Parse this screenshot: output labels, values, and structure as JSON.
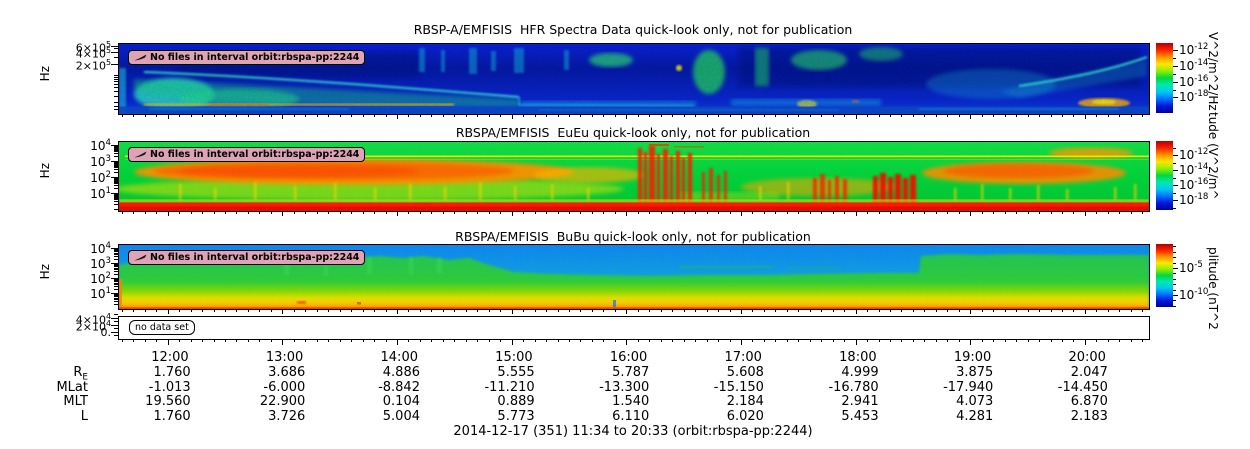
{
  "window": {
    "background": "#ffffff"
  },
  "icons": {
    "badge_marker": "pen-slash-icon"
  },
  "colors": {
    "jet": [
      "#b00000",
      "#ff2000",
      "#ff9000",
      "#ffe600",
      "#90f000",
      "#00d840",
      "#00e8b0",
      "#00c8f0",
      "#0070ff",
      "#0018d8",
      "#0000a0"
    ],
    "badge_bg": "#dfa3b6",
    "panel1_base": "#0a16c0",
    "panel2_base": "#00d23c",
    "panel3_top": "#0a86f0"
  },
  "chart_data": [
    {
      "type": "heatmap",
      "title": "RBSP-A/EMFISIS  HFR Spectra Data quick-look only, not for publication",
      "ylabel": "Hz",
      "yscale": "log",
      "yticks": [
        "6×10^5",
        "4×10^5",
        "2×10^5"
      ],
      "badge": "No files in interval orbit:rbspa-pp:2244",
      "colorbar": {
        "ticks": [
          "10^-12",
          "10^-14",
          "10^-16",
          "10^-18"
        ],
        "unit": "V^2/m^2/Hz",
        "range_exponents": [
          -12,
          -18
        ]
      }
    },
    {
      "type": "heatmap",
      "title": "RBSPA/EMFISIS  EuEu quick-look only, not for publication",
      "ylabel": "Hz",
      "yscale": "log",
      "yticks": [
        "10^4",
        "10^3",
        "10^2",
        "10^1"
      ],
      "badge": "No files in interval orbit:rbspa-pp:2244",
      "colorbar": {
        "ticks": [
          "10^-12",
          "10^-14",
          "10^-16",
          "10^-18"
        ],
        "unit": "tude (V^2/m^",
        "range_exponents": [
          -12,
          -18
        ]
      }
    },
    {
      "type": "heatmap",
      "title": "RBSPA/EMFISIS  BuBu quick-look only, not for publication",
      "ylabel": "Hz",
      "yscale": "log",
      "yticks": [
        "10^4",
        "10^3",
        "10^2",
        "10^1"
      ],
      "badge": "No files in interval orbit:rbspa-pp:2244",
      "colorbar": {
        "ticks": [
          "10^-5",
          "10^-10"
        ],
        "unit": "plitude (nT^2",
        "range_exponents": [
          -5,
          -10
        ]
      }
    },
    {
      "type": "empty",
      "yticks": [
        "4×10^4",
        "2×10^4",
        "0."
      ],
      "badge": "no data set"
    },
    {
      "type": "table",
      "x": [
        "12:00",
        "13:00",
        "14:00",
        "15:00",
        "16:00",
        "17:00",
        "18:00",
        "19:00",
        "20:00"
      ],
      "rows": [
        {
          "label": "R",
          "sub": "E",
          "values": [
            "1.760",
            "3.686",
            "4.886",
            "5.555",
            "5.787",
            "5.608",
            "4.999",
            "3.875",
            "2.047"
          ]
        },
        {
          "label": "MLat",
          "sub": "",
          "values": [
            "-1.013",
            "-6.000",
            "-8.842",
            "-11.210",
            "-13.300",
            "-15.150",
            "-16.780",
            "-17.940",
            "-14.450"
          ]
        },
        {
          "label": "MLT",
          "sub": "",
          "values": [
            "19.560",
            "22.900",
            "0.104",
            "0.889",
            "1.540",
            "2.184",
            "2.941",
            "4.073",
            "6.870"
          ]
        },
        {
          "label": "L",
          "sub": "",
          "values": [
            "1.760",
            "3.726",
            "5.004",
            "5.773",
            "6.110",
            "6.020",
            "5.453",
            "4.281",
            "2.183"
          ]
        }
      ],
      "caption": "2014-12-17 (351) 11:34 to 20:33 (orbit:rbspa-pp:2244)"
    }
  ]
}
